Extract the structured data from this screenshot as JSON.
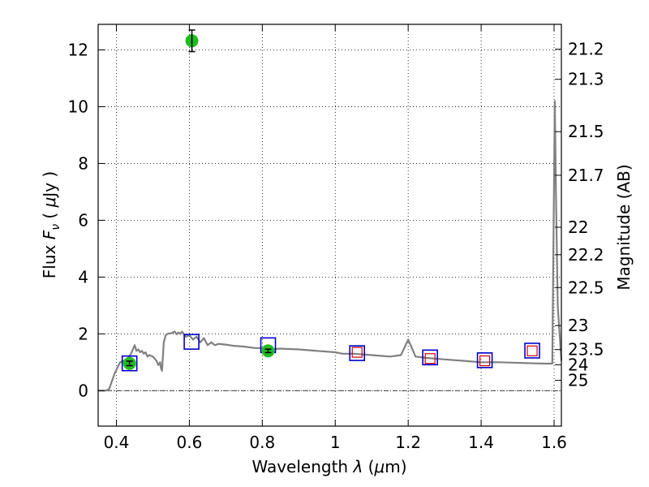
{
  "chart_data": {
    "type": "scatter",
    "xlabel": "Wavelength  λ (μm)",
    "ylabel": "Flux  F_ν  ( μJy )",
    "ylabel_parts": {
      "pre": "Flux  ",
      "sym": "F",
      "sub": "ν",
      "post": "  (  ",
      "mu": "μ",
      "unit": "Jy )"
    },
    "xlabel_parts": {
      "pre": "Wavelength  ",
      "sym": "λ",
      "post": " (",
      "mu": "μ",
      "unit": "m)"
    },
    "y2label": "Magnitude (AB)",
    "xlim": [
      0.35,
      1.62
    ],
    "ylim": [
      -1.25,
      12.9
    ],
    "grid": true,
    "x_ticks": [
      0.4,
      0.6,
      0.8,
      1.0,
      1.2,
      1.4,
      1.6
    ],
    "x_tick_labels": [
      "0.4",
      "0.6",
      "0.8",
      "1",
      "1.2",
      "1.4",
      "1.6"
    ],
    "y_ticks": [
      0,
      2,
      4,
      6,
      8,
      10,
      12
    ],
    "y_tick_labels": [
      "0",
      "2",
      "4",
      "6",
      "8",
      "10",
      "12"
    ],
    "mag_ticks": [
      21.2,
      21.3,
      21.5,
      21.7,
      22,
      22.2,
      22.5,
      23,
      23.5,
      24,
      25
    ],
    "mag_tick_labels": [
      "21.2",
      "21.3",
      "21.5",
      "21.7",
      "22",
      "22.2",
      "22.5",
      "23",
      "23.5",
      "24",
      "25"
    ],
    "model_sed": {
      "color": "#808080",
      "x": [
        0.35,
        0.37,
        0.38,
        0.395,
        0.41,
        0.43,
        0.44,
        0.45,
        0.455,
        0.46,
        0.465,
        0.47,
        0.475,
        0.48,
        0.485,
        0.49,
        0.5,
        0.51,
        0.515,
        0.52,
        0.522,
        0.525,
        0.53,
        0.535,
        0.54,
        0.55,
        0.56,
        0.565,
        0.57,
        0.575,
        0.58,
        0.59,
        0.6,
        0.61,
        0.62,
        0.63,
        0.64,
        0.65,
        0.66,
        0.67,
        0.68,
        0.7,
        0.72,
        0.75,
        0.78,
        0.8,
        0.82,
        0.85,
        0.9,
        0.95,
        1.0,
        1.02,
        1.05,
        1.1,
        1.15,
        1.18,
        1.2,
        1.22,
        1.25,
        1.3,
        1.35,
        1.4,
        1.45,
        1.5,
        1.55,
        1.58,
        1.595,
        1.602,
        1.605,
        1.61,
        1.62
      ],
      "y": [
        0.0,
        0.0,
        0.05,
        0.6,
        1.0,
        1.1,
        1.3,
        1.6,
        1.4,
        1.45,
        1.35,
        1.4,
        1.3,
        1.35,
        1.2,
        1.25,
        1.2,
        1.05,
        0.9,
        1.0,
        0.8,
        0.7,
        1.7,
        1.95,
        2.0,
        2.02,
        2.08,
        1.98,
        2.05,
        2.0,
        2.08,
        1.9,
        1.95,
        1.8,
        1.9,
        1.7,
        1.85,
        1.6,
        1.7,
        1.6,
        1.65,
        1.62,
        1.58,
        1.55,
        1.5,
        1.5,
        1.45,
        1.48,
        1.45,
        1.4,
        1.35,
        1.3,
        1.3,
        1.25,
        1.2,
        1.25,
        1.8,
        1.2,
        1.15,
        1.1,
        1.05,
        1.0,
        1.0,
        0.98,
        0.96,
        0.95,
        0.95,
        10.2,
        7.0,
        3.0,
        1.05
      ]
    },
    "synthetic_photometry": {
      "color": "#0000cc",
      "x": [
        0.436,
        0.606,
        0.816,
        1.06,
        1.26,
        1.41,
        1.54
      ],
      "y": [
        0.96,
        1.72,
        1.6,
        1.32,
        1.17,
        1.07,
        1.41
      ]
    },
    "upper_limits": {
      "color": "#cc0000",
      "x": [
        1.06,
        1.26,
        1.41,
        1.54
      ],
      "y": [
        1.35,
        1.13,
        1.05,
        1.4
      ]
    },
    "observed": {
      "color": "#22bb22",
      "x": [
        0.436,
        0.607,
        0.816
      ],
      "y": [
        0.96,
        12.32,
        1.4
      ],
      "yerr": [
        0.08,
        0.38,
        0.06
      ]
    },
    "hline_y": 0
  }
}
